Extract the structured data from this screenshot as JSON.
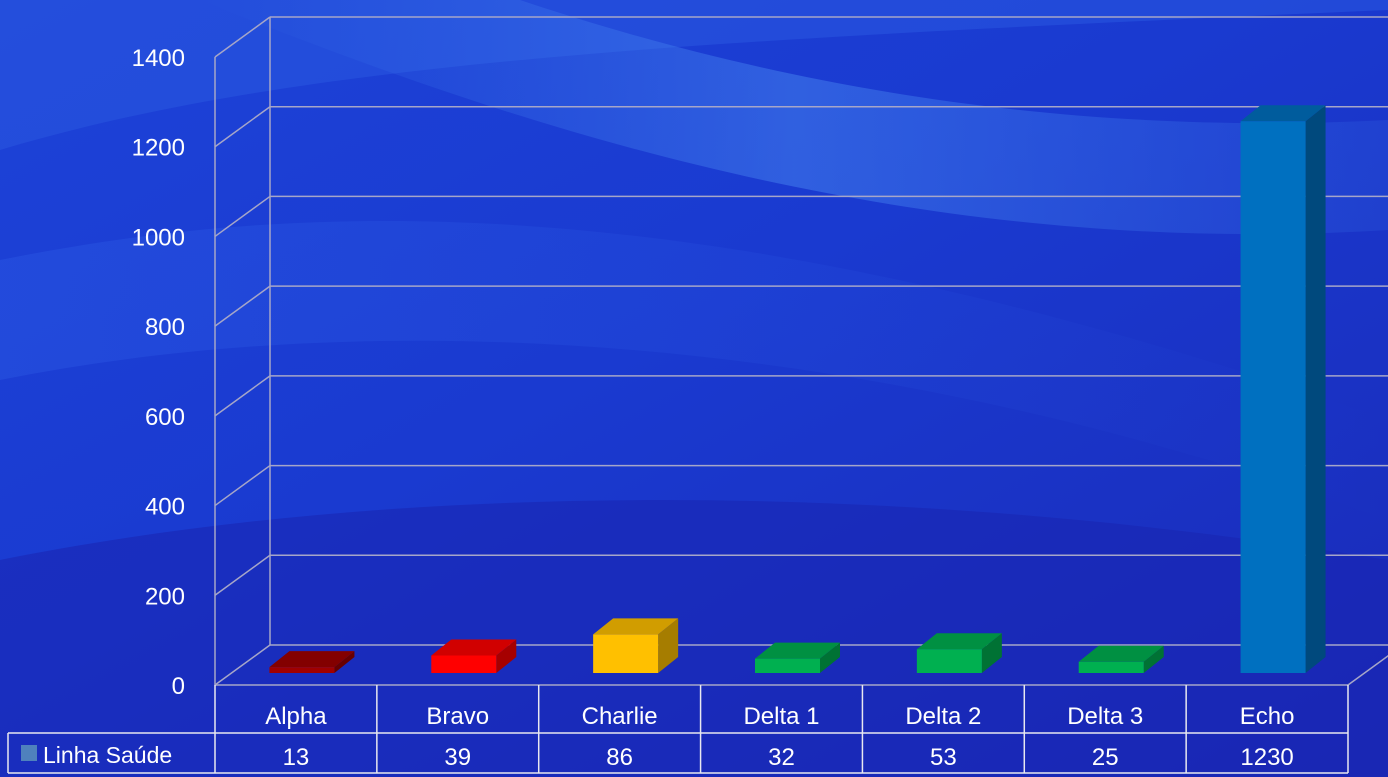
{
  "chart_data": {
    "type": "bar",
    "title": "",
    "xlabel": "",
    "ylabel": "",
    "categories": [
      "Alpha",
      "Bravo",
      "Charlie",
      "Delta 1",
      "Delta 2",
      "Delta 3",
      "Echo"
    ],
    "series": [
      {
        "name": "Linha Saúde",
        "values": [
          13,
          39,
          86,
          32,
          53,
          25,
          1230
        ],
        "colors": [
          "#a00000",
          "#ff0000",
          "#ffc000",
          "#00b050",
          "#00b050",
          "#00b050",
          "#0070c0"
        ]
      }
    ],
    "ylim": [
      0,
      1400
    ],
    "yticks": [
      0,
      200,
      400,
      600,
      800,
      1000,
      1200,
      1400
    ],
    "grid": true,
    "three_d": true,
    "legend_position": "data-table-left",
    "legend_marker_color": "#4f81bd",
    "gridline_color": "#a6a6c8",
    "background_color": "#1a3ad0"
  }
}
